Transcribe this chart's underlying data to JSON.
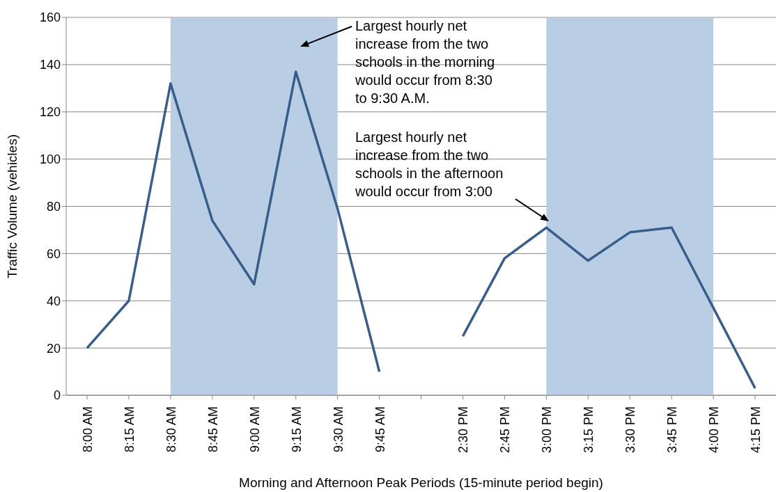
{
  "chart_data": {
    "type": "line",
    "xlabel": "Morning and Afternoon Peak Periods (15-minute period begin)",
    "ylabel": "Traffic Volume (vehicles)",
    "categories": [
      "8:00 AM",
      "8:15 AM",
      "8:30 AM",
      "8:45 AM",
      "9:00 AM",
      "9:15 AM",
      "9:30 AM",
      "9:45 AM",
      null,
      "2:30 PM",
      "2:45 PM",
      "3:00 PM",
      "3:15 PM",
      "3:30 PM",
      "3:45 PM",
      "4:00 PM",
      "4:15 PM"
    ],
    "series": [
      {
        "color": "#385d8a",
        "values": [
          20,
          40,
          132,
          74,
          47,
          137,
          79,
          10,
          null,
          25,
          58,
          71,
          57,
          69,
          71,
          37,
          3
        ]
      }
    ],
    "ylim": [
      0,
      160
    ],
    "yticks": [
      0,
      20,
      40,
      60,
      80,
      100,
      120,
      140,
      160
    ],
    "grid": "y",
    "marker": "none",
    "bands": [
      {
        "axis": "x",
        "from": "8:30 AM",
        "to": "9:30 AM",
        "color": "#b9cde5"
      },
      {
        "axis": "x",
        "from": "3:00 PM",
        "to": "4:00 PM",
        "color": "#b9cde5"
      }
    ],
    "annotations": [
      "Largest hourly net increase from the two schools in the morning would occur from 8:30 to 9:30 A.M.",
      "Largest hourly net increase from the two schools in the afternoon would occur from 3:00"
    ]
  }
}
